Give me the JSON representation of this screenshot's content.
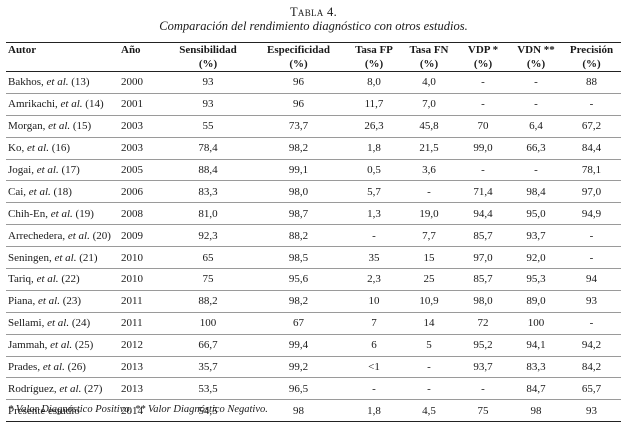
{
  "caption": {
    "title": "Tabla 4.",
    "subtitle": "Comparación del rendimiento diagnóstico con otros estudios."
  },
  "headers": [
    [
      "Autor",
      ""
    ],
    [
      "Año",
      ""
    ],
    [
      "Sensibilidad",
      "(%)"
    ],
    [
      "Especificidad",
      "(%)"
    ],
    [
      "Tasa FP",
      "(%)"
    ],
    [
      "Tasa FN",
      "(%)"
    ],
    [
      "VDP *",
      "(%)"
    ],
    [
      "VDN **",
      "(%)"
    ],
    [
      "Precisión",
      "(%)"
    ]
  ],
  "rows": [
    [
      {
        "name": "Bakhos,",
        "etal": "et al.",
        "ref": "(13)"
      },
      "2000",
      "93",
      "96",
      "8,0",
      "4,0",
      "-",
      "-",
      "88"
    ],
    [
      {
        "name": "Amrikachi,",
        "etal": "et al.",
        "ref": "(14)"
      },
      "2001",
      "93",
      "96",
      "11,7",
      "7,0",
      "-",
      "-",
      "-"
    ],
    [
      {
        "name": "Morgan,",
        "etal": "et al.",
        "ref": "(15)"
      },
      "2003",
      "55",
      "73,7",
      "26,3",
      "45,8",
      "70",
      "6,4",
      "67,2"
    ],
    [
      {
        "name": "Ko,",
        "etal": "et al.",
        "ref": "(16)"
      },
      "2003",
      "78,4",
      "98,2",
      "1,8",
      "21,5",
      "99,0",
      "66,3",
      "84,4"
    ],
    [
      {
        "name": "Jogai,",
        "etal": "et al.",
        "ref": "(17)"
      },
      "2005",
      "88,4",
      "99,1",
      "0,5",
      "3,6",
      "-",
      "-",
      "78,1"
    ],
    [
      {
        "name": "Cai,",
        "etal": "et al.",
        "ref": "(18)"
      },
      "2006",
      "83,3",
      "98,0",
      "5,7",
      "-",
      "71,4",
      "98,4",
      "97,0"
    ],
    [
      {
        "name": "Chih-En,",
        "etal": "et al.",
        "ref": "(19)"
      },
      "2008",
      "81,0",
      "98,7",
      "1,3",
      "19,0",
      "94,4",
      "95,0",
      "94,9"
    ],
    [
      {
        "name": "Arrechedera,",
        "etal": "et al.",
        "ref": "(20)"
      },
      "2009",
      "92,3",
      "88,2",
      "-",
      "7,7",
      "85,7",
      "93,7",
      "-"
    ],
    [
      {
        "name": "Seningen,",
        "etal": "et al.",
        "ref": "(21)"
      },
      "2010",
      "65",
      "98,5",
      "35",
      "15",
      "97,0",
      "92,0",
      "-"
    ],
    [
      {
        "name": "Tariq,",
        "etal": "et al.",
        "ref": "(22)"
      },
      "2010",
      "75",
      "95,6",
      "2,3",
      "25",
      "85,7",
      "95,3",
      "94"
    ],
    [
      {
        "name": "Piana,",
        "etal": "et al.",
        "ref": "(23)"
      },
      "2011",
      "88,2",
      "98,2",
      "10",
      "10,9",
      "98,0",
      "89,0",
      "93"
    ],
    [
      {
        "name": "Sellami,",
        "etal": "et al.",
        "ref": "(24)"
      },
      "2011",
      "100",
      "67",
      "7",
      "14",
      "72",
      "100",
      "-"
    ],
    [
      {
        "name": "Jammah,",
        "etal": "et al.",
        "ref": "(25)"
      },
      "2012",
      "66,7",
      "99,4",
      "6",
      "5",
      "95,2",
      "94,1",
      "94,2"
    ],
    [
      {
        "name": "Prades,",
        "etal": "et al.",
        "ref": "(26)"
      },
      "2013",
      "35,7",
      "99,2",
      "<1",
      "-",
      "93,7",
      "83,3",
      "84,2"
    ],
    [
      {
        "name": "Rodríguez,",
        "etal": "et al.",
        "ref": "(27)"
      },
      "2013",
      "53,5",
      "96,5",
      "-",
      "-",
      "-",
      "84,7",
      "65,7"
    ],
    [
      {
        "name": "Presente estudio",
        "etal": "",
        "ref": ""
      },
      "2014",
      "54,5",
      "98",
      "1,8",
      "4,5",
      "75",
      "98",
      "93"
    ]
  ],
  "footnote": "* Valor Diagnóstico Positivo, ** Valor Diagnóstico Negativo."
}
